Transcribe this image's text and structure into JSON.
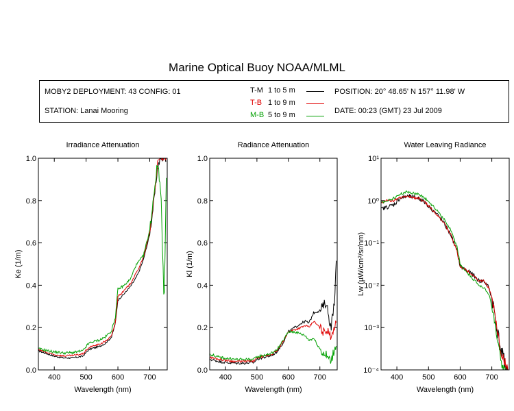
{
  "page": {
    "title": "Marine Optical Buoy NOAA/MLML"
  },
  "info": {
    "deployment": "MOBY2 DEPLOYMENT: 43 CONFIG: 01",
    "station": "STATION: Lanai Mooring",
    "position": "POSITION: 20° 48.65' N   157° 11.98' W",
    "date": "DATE: 00:23 (GMT) 23 Jul 2009",
    "legend": [
      {
        "code": "T-M",
        "range": "1 to 5  m",
        "color": "#000000"
      },
      {
        "code": "T-B",
        "range": "1 to 9  m",
        "color": "#e00000"
      },
      {
        "code": "M-B",
        "range": "5 to 9  m",
        "color": "#00a000"
      }
    ]
  },
  "chart_data": [
    {
      "type": "line",
      "title": "Irradiance Attenuation",
      "xlabel": "Wavelength (nm)",
      "ylabel": "Ke  (1/m)",
      "xlim": [
        350,
        755
      ],
      "ylim": [
        0,
        1.0
      ],
      "xticks": [
        400,
        500,
        600,
        700
      ],
      "yticks": [
        0.0,
        0.2,
        0.4,
        0.6,
        0.8,
        1.0
      ],
      "ytick_labels": [
        "0.0",
        "0.2",
        "0.4",
        "0.6",
        "0.8",
        "1.0"
      ],
      "grid": false,
      "series": [
        {
          "name": "T-M",
          "color": "#000000",
          "noise": 0.004,
          "x": [
            350,
            380,
            400,
            430,
            460,
            490,
            505,
            515,
            540,
            560,
            580,
            592,
            600,
            610,
            620,
            640,
            655,
            665,
            680,
            700,
            715,
            725,
            735,
            745,
            752
          ],
          "y": [
            0.09,
            0.075,
            0.065,
            0.057,
            0.057,
            0.065,
            0.09,
            0.1,
            0.11,
            0.125,
            0.155,
            0.22,
            0.33,
            0.345,
            0.36,
            0.395,
            0.43,
            0.46,
            0.52,
            0.64,
            0.82,
            0.96,
            1.0,
            1.0,
            1.0
          ]
        },
        {
          "name": "T-B",
          "color": "#e00000",
          "noise": 0.004,
          "x": [
            350,
            380,
            400,
            430,
            460,
            490,
            505,
            515,
            540,
            560,
            580,
            592,
            600,
            610,
            620,
            640,
            655,
            665,
            680,
            700,
            715,
            725,
            735,
            745,
            752
          ],
          "y": [
            0.095,
            0.08,
            0.072,
            0.066,
            0.068,
            0.076,
            0.1,
            0.11,
            0.12,
            0.135,
            0.16,
            0.225,
            0.35,
            0.36,
            0.375,
            0.41,
            0.45,
            0.48,
            0.53,
            0.65,
            0.84,
            0.98,
            1.0,
            1.0,
            1.0
          ]
        },
        {
          "name": "M-B",
          "color": "#00a000",
          "noise": 0.006,
          "x": [
            350,
            380,
            400,
            430,
            460,
            490,
            505,
            515,
            540,
            560,
            580,
            592,
            600,
            610,
            620,
            640,
            655,
            665,
            680,
            700,
            715,
            725,
            735,
            745,
            752
          ],
          "y": [
            0.1,
            0.09,
            0.085,
            0.08,
            0.082,
            0.09,
            0.12,
            0.13,
            0.14,
            0.155,
            0.185,
            0.25,
            0.38,
            0.39,
            0.4,
            0.43,
            0.49,
            0.51,
            0.54,
            0.66,
            0.86,
            0.98,
            0.85,
            0.3,
            0.9
          ]
        }
      ]
    },
    {
      "type": "line",
      "title": "Radiance Attenuation",
      "xlabel": "Wavelength (nm)",
      "ylabel": "Kl  (1/m)",
      "xlim": [
        350,
        755
      ],
      "ylim": [
        0,
        1.0
      ],
      "xticks": [
        400,
        500,
        600,
        700
      ],
      "yticks": [
        0.0,
        0.2,
        0.4,
        0.6,
        0.8,
        1.0
      ],
      "ytick_labels": [
        "0.0",
        "0.2",
        "0.4",
        "0.6",
        "0.8",
        "1.0"
      ],
      "grid": false,
      "series": [
        {
          "name": "T-M",
          "color": "#000000",
          "noise": 0.006,
          "x": [
            350,
            380,
            400,
            430,
            460,
            490,
            500,
            510,
            540,
            560,
            580,
            600,
            620,
            640,
            655,
            665,
            680,
            700,
            710,
            720,
            735,
            745,
            752
          ],
          "y": [
            0.05,
            0.04,
            0.035,
            0.032,
            0.032,
            0.035,
            0.05,
            0.055,
            0.065,
            0.08,
            0.12,
            0.18,
            0.2,
            0.22,
            0.23,
            0.22,
            0.27,
            0.28,
            0.3,
            0.32,
            0.2,
            0.3,
            0.5
          ]
        },
        {
          "name": "T-B",
          "color": "#e00000",
          "noise": 0.005,
          "x": [
            350,
            380,
            400,
            430,
            460,
            490,
            500,
            510,
            540,
            560,
            580,
            600,
            620,
            640,
            655,
            665,
            680,
            700,
            710,
            720,
            735,
            745,
            752
          ],
          "y": [
            0.06,
            0.05,
            0.045,
            0.04,
            0.04,
            0.042,
            0.055,
            0.06,
            0.07,
            0.085,
            0.125,
            0.18,
            0.19,
            0.2,
            0.21,
            0.2,
            0.23,
            0.2,
            0.18,
            0.19,
            0.16,
            0.2,
            0.22
          ]
        },
        {
          "name": "M-B",
          "color": "#00a000",
          "noise": 0.006,
          "x": [
            350,
            380,
            400,
            430,
            460,
            490,
            500,
            510,
            540,
            560,
            580,
            600,
            620,
            640,
            655,
            665,
            680,
            700,
            710,
            720,
            735,
            745,
            752
          ],
          "y": [
            0.075,
            0.06,
            0.055,
            0.05,
            0.05,
            0.05,
            0.06,
            0.065,
            0.075,
            0.09,
            0.13,
            0.18,
            0.18,
            0.17,
            0.16,
            0.14,
            0.15,
            0.1,
            0.08,
            0.07,
            0.04,
            0.09,
            0.12
          ]
        }
      ]
    },
    {
      "type": "line",
      "title": "Water Leaving Radiance",
      "xlabel": "Wavelength (nm)",
      "ylabel": "Lw  (µW/cm²/sr/nm)",
      "xlim": [
        350,
        755
      ],
      "ylim": [
        0.0001,
        10
      ],
      "yscale": "log",
      "xticks": [
        400,
        500,
        600,
        700
      ],
      "yticks": [
        -4,
        -3,
        -2,
        -1,
        0,
        1
      ],
      "ytick_labels": [
        "10⁻⁴",
        "10⁻³",
        "10⁻²",
        "10⁻¹",
        "10⁰",
        "10¹"
      ],
      "grid": false,
      "series": [
        {
          "name": "T-M",
          "color": "#000000",
          "noise": 0.05,
          "x": [
            350,
            370,
            390,
            410,
            430,
            450,
            470,
            490,
            510,
            530,
            550,
            570,
            590,
            600,
            620,
            640,
            660,
            675,
            690,
            700,
            710,
            720,
            730,
            740,
            750,
            752
          ],
          "y": [
            -0.2,
            -0.15,
            -0.1,
            0.05,
            0.1,
            0.08,
            0.05,
            -0.05,
            -0.2,
            -0.35,
            -0.55,
            -0.8,
            -1.2,
            -1.55,
            -1.65,
            -1.75,
            -1.9,
            -1.9,
            -2.05,
            -2.3,
            -2.7,
            -3.2,
            -3.6,
            -3.8,
            -4.0,
            -4.1
          ]
        },
        {
          "name": "T-B",
          "color": "#e00000",
          "noise": 0.03,
          "x": [
            350,
            370,
            390,
            410,
            430,
            450,
            470,
            490,
            510,
            530,
            550,
            570,
            590,
            600,
            620,
            640,
            660,
            675,
            690,
            700,
            710,
            720,
            730,
            740,
            750,
            752
          ],
          "y": [
            -0.05,
            0.0,
            0.0,
            0.06,
            0.1,
            0.08,
            0.05,
            -0.05,
            -0.2,
            -0.35,
            -0.55,
            -0.8,
            -1.2,
            -1.55,
            -1.65,
            -1.75,
            -1.9,
            -1.9,
            -2.05,
            -2.3,
            -2.7,
            -3.2,
            -3.6,
            -3.8,
            -4.0,
            -4.1
          ]
        },
        {
          "name": "M-B",
          "color": "#00a000",
          "noise": 0.03,
          "x": [
            350,
            370,
            390,
            410,
            430,
            450,
            470,
            490,
            510,
            530,
            550,
            570,
            590,
            600,
            620,
            640,
            660,
            675,
            690,
            700,
            710,
            720,
            730,
            740,
            750,
            752
          ],
          "y": [
            -0.05,
            0.0,
            0.05,
            0.15,
            0.2,
            0.18,
            0.15,
            0.05,
            -0.1,
            -0.25,
            -0.45,
            -0.7,
            -1.1,
            -1.5,
            -1.7,
            -1.85,
            -2.0,
            -2.05,
            -2.2,
            -2.5,
            -2.95,
            -3.4,
            -3.8,
            -4.0,
            -4.1,
            -4.2
          ]
        }
      ]
    }
  ]
}
